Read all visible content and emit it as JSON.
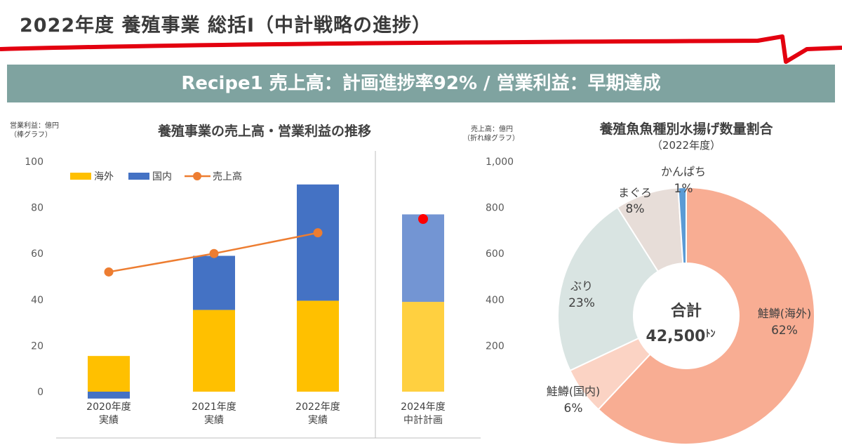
{
  "header": {
    "title": "2022年度 養殖事業 総括Ⅰ（中計戦略の進捗）",
    "banner": "Recipe1  売上高：計画進捗率92% / 営業利益：早期達成"
  },
  "colors": {
    "title_accent": "#e3000f",
    "banner_bg": "#7fa3a0",
    "overseas": "#ffc000",
    "domestic": "#4472c4",
    "sales_line": "#ed7d31",
    "plan_marker": "#ff0000",
    "pie": [
      "#f8ad93",
      "#fbd3c4",
      "#d9e4e2",
      "#e7ddd8",
      "#5b9bd5"
    ]
  },
  "chart_data": [
    {
      "type": "bar",
      "subtype": "stacked bar with line (dual axis)",
      "title": "養殖事業の売上高・営業利益の推移",
      "ylabel": [
        "営業利益：億円",
        "（棒グラフ）"
      ],
      "y2label": [
        "売上高：億円",
        "（折れ線グラフ）"
      ],
      "ylim": [
        0,
        100
      ],
      "y2lim": [
        0,
        1000
      ],
      "yticks": [
        0,
        20,
        40,
        60,
        80,
        100
      ],
      "y2ticks": [
        200,
        400,
        600,
        800,
        1000
      ],
      "y2ticklabels": [
        "200",
        "400",
        "600",
        "800",
        "1,000"
      ],
      "categories": [
        [
          "2020年度",
          "実績"
        ],
        [
          "2021年度",
          "実績"
        ],
        [
          "2022年度",
          "実績"
        ],
        [
          "2024年度",
          "中計計画"
        ]
      ],
      "legend": [
        "海外",
        "国内",
        "売上高"
      ],
      "legend_position": "top-left",
      "series": [
        {
          "name": "海外",
          "values": [
            15.5,
            35.5,
            39.5,
            39
          ],
          "color": "#ffc000"
        },
        {
          "name": "国内",
          "values": [
            -3,
            23.5,
            50.5,
            38
          ],
          "color": "#4472c4"
        },
        {
          "name": "売上高",
          "values": [
            520,
            600,
            690,
            null
          ],
          "axis": "secondary",
          "color": "#ed7d31"
        }
      ],
      "plan_sales": 750,
      "plan_separator_after": 3,
      "grid": false
    },
    {
      "type": "pie",
      "subtype": "donut",
      "title": "養殖魚魚種別水揚げ数量割合",
      "subtitle": "（2022年度）",
      "center_label": "合計",
      "center_value": "42,500",
      "center_unit": "ﾄﾝ",
      "slices": [
        {
          "name": "鮭鱒(海外)",
          "value": 62,
          "label": "62%",
          "color": "#f8ad93"
        },
        {
          "name": "鮭鱒(国内)",
          "value": 6,
          "label": "6%",
          "color": "#fbd3c4"
        },
        {
          "name": "ぶり",
          "value": 23,
          "label": "23%",
          "color": "#d9e4e2"
        },
        {
          "name": "まぐろ",
          "value": 8,
          "label": "8%",
          "color": "#e7ddd8"
        },
        {
          "name": "かんぱち",
          "value": 1,
          "label": "1%",
          "color": "#5b9bd5"
        }
      ]
    }
  ]
}
